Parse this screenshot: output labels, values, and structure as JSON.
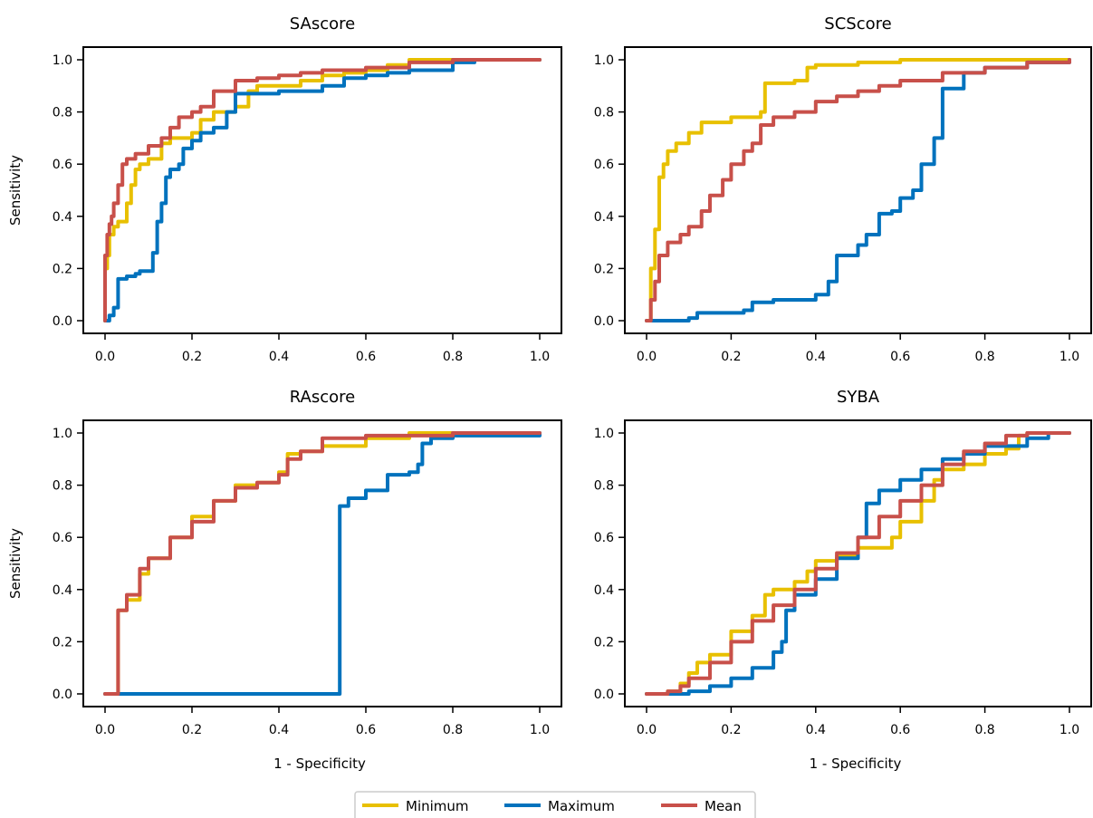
{
  "colors": {
    "Minimum": "#e8c000",
    "Maximum": "#0072bd",
    "Mean": "#c8504a"
  },
  "legend": {
    "entries": [
      "Minimum",
      "Maximum",
      "Mean"
    ]
  },
  "chart_data": [
    {
      "type": "line",
      "title": "SAscore",
      "xlabel": "",
      "ylabel": "Sensitivity",
      "xlim": [
        0,
        1
      ],
      "ylim": [
        0,
        1
      ],
      "xticks": [
        "0.0",
        "0.2",
        "0.4",
        "0.6",
        "0.8",
        "1.0"
      ],
      "yticks": [
        "0.0",
        "0.2",
        "0.4",
        "0.6",
        "0.8",
        "1.0"
      ],
      "grid": false,
      "series": [
        {
          "name": "Minimum",
          "x": [
            0,
            0,
            0.005,
            0.01,
            0.02,
            0.03,
            0.05,
            0.06,
            0.07,
            0.08,
            0.1,
            0.13,
            0.15,
            0.2,
            0.22,
            0.25,
            0.3,
            0.33,
            0.35,
            0.4,
            0.45,
            0.5,
            0.55,
            0.6,
            0.65,
            0.7,
            0.75,
            0.8,
            0.85,
            1.0
          ],
          "y": [
            0,
            0.2,
            0.25,
            0.33,
            0.36,
            0.38,
            0.45,
            0.52,
            0.58,
            0.6,
            0.62,
            0.68,
            0.7,
            0.72,
            0.77,
            0.8,
            0.82,
            0.88,
            0.9,
            0.9,
            0.92,
            0.94,
            0.95,
            0.96,
            0.98,
            1.0,
            1.0,
            1.0,
            1.0,
            1.0
          ]
        },
        {
          "name": "Maximum",
          "x": [
            0,
            0.01,
            0.02,
            0.03,
            0.05,
            0.07,
            0.08,
            0.11,
            0.12,
            0.13,
            0.14,
            0.15,
            0.17,
            0.18,
            0.2,
            0.22,
            0.25,
            0.28,
            0.3,
            0.35,
            0.4,
            0.45,
            0.5,
            0.55,
            0.6,
            0.65,
            0.7,
            0.75,
            0.8,
            0.85,
            1.0
          ],
          "y": [
            0,
            0.02,
            0.05,
            0.16,
            0.17,
            0.18,
            0.19,
            0.26,
            0.38,
            0.45,
            0.55,
            0.58,
            0.6,
            0.66,
            0.69,
            0.72,
            0.74,
            0.8,
            0.87,
            0.87,
            0.88,
            0.88,
            0.9,
            0.93,
            0.94,
            0.95,
            0.96,
            0.96,
            0.99,
            1.0,
            1.0
          ]
        },
        {
          "name": "Mean",
          "x": [
            0,
            0,
            0.005,
            0.01,
            0.015,
            0.02,
            0.03,
            0.04,
            0.05,
            0.07,
            0.1,
            0.13,
            0.15,
            0.17,
            0.2,
            0.22,
            0.25,
            0.3,
            0.35,
            0.4,
            0.45,
            0.5,
            0.6,
            0.7,
            0.8,
            1.0
          ],
          "y": [
            0,
            0.25,
            0.33,
            0.37,
            0.4,
            0.45,
            0.52,
            0.6,
            0.62,
            0.64,
            0.67,
            0.7,
            0.74,
            0.78,
            0.8,
            0.82,
            0.88,
            0.92,
            0.93,
            0.94,
            0.95,
            0.96,
            0.97,
            0.99,
            1.0,
            1.0
          ]
        }
      ]
    },
    {
      "type": "line",
      "title": "SCScore",
      "xlabel": "",
      "ylabel": "",
      "xlim": [
        0,
        1
      ],
      "ylim": [
        0,
        1
      ],
      "xticks": [
        "0.0",
        "0.2",
        "0.4",
        "0.6",
        "0.8",
        "1.0"
      ],
      "yticks": [
        "0.0",
        "0.2",
        "0.4",
        "0.6",
        "0.8",
        "1.0"
      ],
      "grid": false,
      "series": [
        {
          "name": "Minimum",
          "x": [
            0,
            0.01,
            0.02,
            0.03,
            0.04,
            0.05,
            0.07,
            0.1,
            0.13,
            0.2,
            0.27,
            0.28,
            0.3,
            0.35,
            0.38,
            0.4,
            0.5,
            0.6,
            0.7,
            0.8,
            1.0
          ],
          "y": [
            0,
            0.2,
            0.35,
            0.55,
            0.6,
            0.65,
            0.68,
            0.72,
            0.76,
            0.78,
            0.8,
            0.91,
            0.91,
            0.92,
            0.97,
            0.98,
            0.99,
            1.0,
            1.0,
            1.0,
            1.0
          ]
        },
        {
          "name": "Maximum",
          "x": [
            0,
            0.05,
            0.1,
            0.12,
            0.2,
            0.23,
            0.25,
            0.3,
            0.35,
            0.4,
            0.43,
            0.45,
            0.5,
            0.52,
            0.55,
            0.58,
            0.6,
            0.63,
            0.65,
            0.68,
            0.7,
            0.75,
            0.8,
            0.9,
            1.0
          ],
          "y": [
            0,
            0,
            0.01,
            0.03,
            0.03,
            0.04,
            0.07,
            0.08,
            0.08,
            0.1,
            0.15,
            0.25,
            0.29,
            0.33,
            0.41,
            0.42,
            0.47,
            0.5,
            0.6,
            0.7,
            0.89,
            0.95,
            0.97,
            0.99,
            1.0
          ]
        },
        {
          "name": "Mean",
          "x": [
            0,
            0.01,
            0.02,
            0.03,
            0.05,
            0.08,
            0.1,
            0.13,
            0.15,
            0.18,
            0.2,
            0.23,
            0.25,
            0.27,
            0.3,
            0.35,
            0.4,
            0.45,
            0.5,
            0.55,
            0.6,
            0.7,
            0.8,
            0.9,
            1.0
          ],
          "y": [
            0,
            0.08,
            0.15,
            0.25,
            0.3,
            0.33,
            0.36,
            0.42,
            0.48,
            0.54,
            0.6,
            0.65,
            0.68,
            0.75,
            0.78,
            0.8,
            0.84,
            0.86,
            0.88,
            0.9,
            0.92,
            0.95,
            0.97,
            0.99,
            1.0
          ]
        }
      ]
    },
    {
      "type": "line",
      "title": "RAscore",
      "xlabel": "1 - Specificity",
      "ylabel": "Sensitivity",
      "xlim": [
        0,
        1
      ],
      "ylim": [
        0,
        1
      ],
      "xticks": [
        "0.0",
        "0.2",
        "0.4",
        "0.6",
        "0.8",
        "1.0"
      ],
      "yticks": [
        "0.0",
        "0.2",
        "0.4",
        "0.6",
        "0.8",
        "1.0"
      ],
      "grid": false,
      "series": [
        {
          "name": "Minimum",
          "x": [
            0,
            0.03,
            0.05,
            0.08,
            0.1,
            0.15,
            0.2,
            0.25,
            0.3,
            0.35,
            0.4,
            0.42,
            0.45,
            0.5,
            0.55,
            0.6,
            0.7,
            0.8,
            1.0
          ],
          "y": [
            0,
            0.32,
            0.36,
            0.46,
            0.52,
            0.6,
            0.68,
            0.74,
            0.8,
            0.81,
            0.85,
            0.92,
            0.93,
            0.95,
            0.95,
            0.98,
            1.0,
            1.0,
            1.0
          ]
        },
        {
          "name": "Maximum",
          "x": [
            0,
            0.54,
            0.56,
            0.6,
            0.65,
            0.7,
            0.72,
            0.73,
            0.75,
            0.8,
            1.0
          ],
          "y": [
            0,
            0.72,
            0.75,
            0.78,
            0.84,
            0.85,
            0.88,
            0.96,
            0.98,
            0.99,
            1.0
          ]
        },
        {
          "name": "Mean",
          "x": [
            0,
            0.03,
            0.05,
            0.08,
            0.1,
            0.15,
            0.2,
            0.25,
            0.3,
            0.35,
            0.4,
            0.42,
            0.45,
            0.5,
            0.6,
            0.7,
            0.8,
            1.0
          ],
          "y": [
            0,
            0.32,
            0.38,
            0.48,
            0.52,
            0.6,
            0.66,
            0.74,
            0.79,
            0.81,
            0.84,
            0.9,
            0.93,
            0.98,
            0.99,
            0.99,
            1.0,
            1.0
          ]
        }
      ]
    },
    {
      "type": "line",
      "title": "SYBA",
      "xlabel": "1 - Specificity",
      "ylabel": "",
      "xlim": [
        0,
        1
      ],
      "ylim": [
        0,
        1
      ],
      "xticks": [
        "0.0",
        "0.2",
        "0.4",
        "0.6",
        "0.8",
        "1.0"
      ],
      "yticks": [
        "0.0",
        "0.2",
        "0.4",
        "0.6",
        "0.8",
        "1.0"
      ],
      "grid": false,
      "series": [
        {
          "name": "Minimum",
          "x": [
            0,
            0.05,
            0.08,
            0.1,
            0.12,
            0.15,
            0.2,
            0.25,
            0.28,
            0.3,
            0.35,
            0.38,
            0.4,
            0.45,
            0.5,
            0.55,
            0.58,
            0.6,
            0.65,
            0.68,
            0.7,
            0.75,
            0.8,
            0.85,
            0.88,
            0.9,
            1.0
          ],
          "y": [
            0,
            0.01,
            0.04,
            0.08,
            0.12,
            0.15,
            0.24,
            0.3,
            0.38,
            0.4,
            0.43,
            0.47,
            0.51,
            0.53,
            0.56,
            0.56,
            0.6,
            0.66,
            0.74,
            0.82,
            0.86,
            0.88,
            0.92,
            0.94,
            0.99,
            1.0,
            1.0
          ]
        },
        {
          "name": "Maximum",
          "x": [
            0,
            0.1,
            0.15,
            0.2,
            0.25,
            0.3,
            0.32,
            0.33,
            0.35,
            0.4,
            0.45,
            0.5,
            0.52,
            0.55,
            0.6,
            0.65,
            0.7,
            0.75,
            0.8,
            0.9,
            0.95,
            1.0
          ],
          "y": [
            0,
            0.01,
            0.03,
            0.06,
            0.1,
            0.16,
            0.2,
            0.32,
            0.38,
            0.44,
            0.52,
            0.6,
            0.73,
            0.78,
            0.82,
            0.86,
            0.9,
            0.92,
            0.95,
            0.98,
            1.0,
            1.0
          ]
        },
        {
          "name": "Mean",
          "x": [
            0,
            0.05,
            0.08,
            0.1,
            0.15,
            0.2,
            0.25,
            0.3,
            0.35,
            0.4,
            0.45,
            0.5,
            0.55,
            0.6,
            0.65,
            0.7,
            0.75,
            0.8,
            0.85,
            0.9,
            1.0
          ],
          "y": [
            0,
            0.01,
            0.03,
            0.06,
            0.12,
            0.2,
            0.28,
            0.34,
            0.4,
            0.48,
            0.54,
            0.6,
            0.68,
            0.74,
            0.8,
            0.88,
            0.93,
            0.96,
            0.99,
            1.0,
            1.0
          ]
        }
      ]
    }
  ]
}
